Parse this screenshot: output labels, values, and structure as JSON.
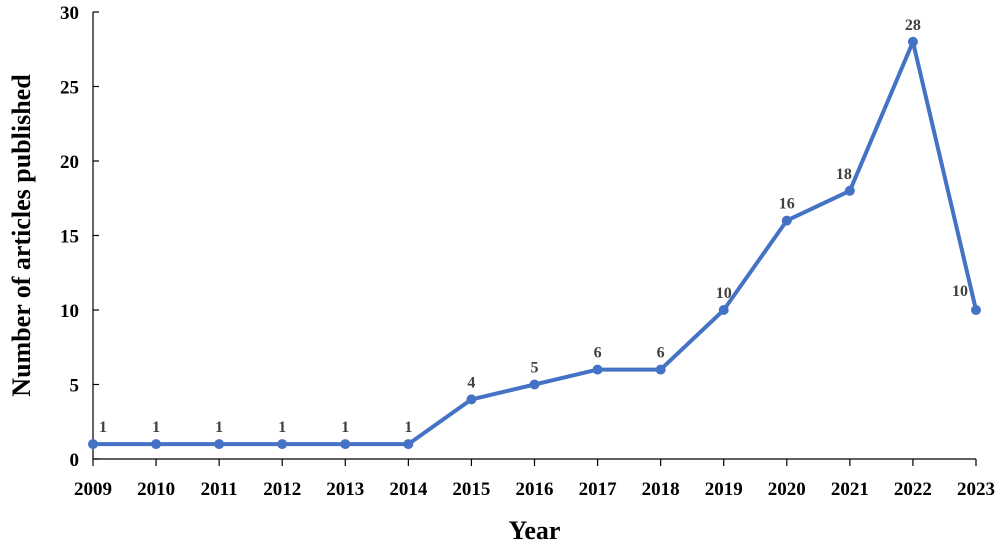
{
  "chart_data": {
    "type": "line",
    "title": "",
    "xlabel": "Year",
    "ylabel": "Number of articles published",
    "x": [
      "2009",
      "2010",
      "2011",
      "2012",
      "2013",
      "2014",
      "2015",
      "2016",
      "2017",
      "2018",
      "2019",
      "2020",
      "2021",
      "2022",
      "2023"
    ],
    "series": [
      {
        "values": [
          1,
          1,
          1,
          1,
          1,
          1,
          4,
          5,
          6,
          6,
          10,
          16,
          18,
          28,
          10
        ],
        "data_labels": [
          "1",
          "1",
          "1",
          "1",
          "1",
          "1",
          "4",
          "5",
          "6",
          "6",
          "10",
          "16",
          "18",
          "28",
          "10"
        ],
        "color": "#4472C4"
      }
    ],
    "ylim": [
      0,
      30
    ],
    "yticks": [
      "0",
      "5",
      "10",
      "15",
      "20",
      "25",
      "30"
    ],
    "grid": false,
    "legend": "none"
  }
}
